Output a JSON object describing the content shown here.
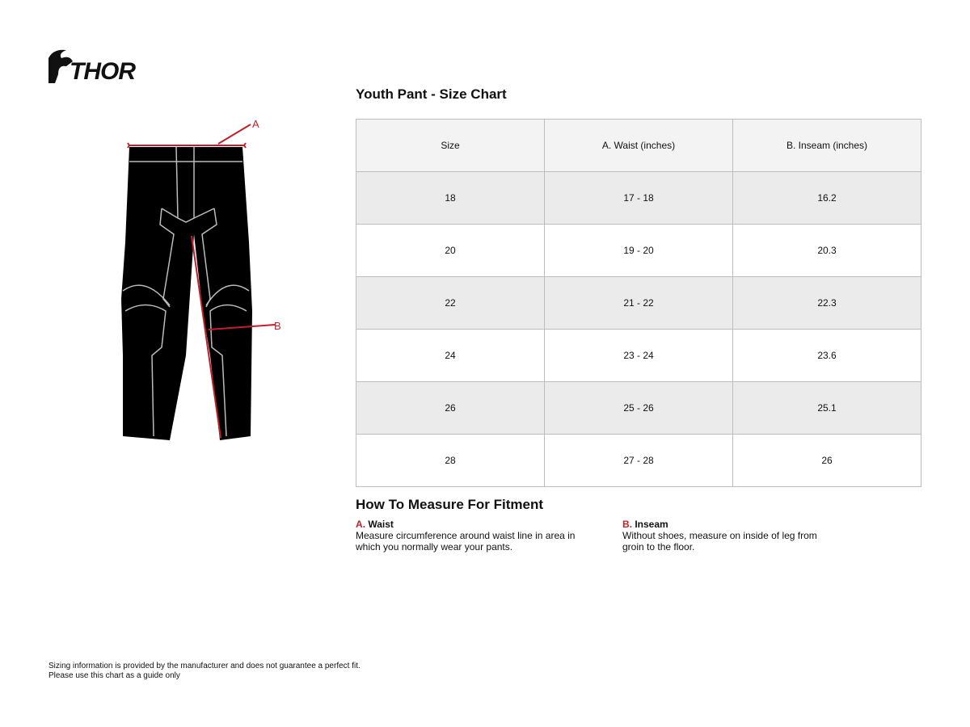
{
  "brand": {
    "logo_text": "THOR"
  },
  "chart": {
    "title": "Youth Pant - Size Chart",
    "columns": [
      "Size",
      "A. Waist (inches)",
      "B. Inseam (inches)"
    ],
    "rows": [
      [
        "18",
        "17 - 18",
        "16.2"
      ],
      [
        "20",
        "19 - 20",
        "20.3"
      ],
      [
        "22",
        "21 - 22",
        "22.3"
      ],
      [
        "24",
        "23 - 24",
        "23.6"
      ],
      [
        "26",
        "25 - 26",
        "25.1"
      ],
      [
        "28",
        "27 - 28",
        "26"
      ]
    ]
  },
  "diagram": {
    "label_a": "A",
    "label_b": "B",
    "accent_color": "#c0202a"
  },
  "howto": {
    "title": "How To Measure For Fitment",
    "waist": {
      "letter": "A.",
      "name": "Waist",
      "text": "Measure circumference around waist line in area in which you normally wear your pants."
    },
    "inseam": {
      "letter": "B.",
      "name": "Inseam",
      "text": "Without shoes, measure on inside of leg from groin to the floor."
    }
  },
  "footer": {
    "line1": "Sizing information is provided by the manufacturer and does not guarantee a perfect fit.",
    "line2": "Please use this chart as a guide only"
  }
}
